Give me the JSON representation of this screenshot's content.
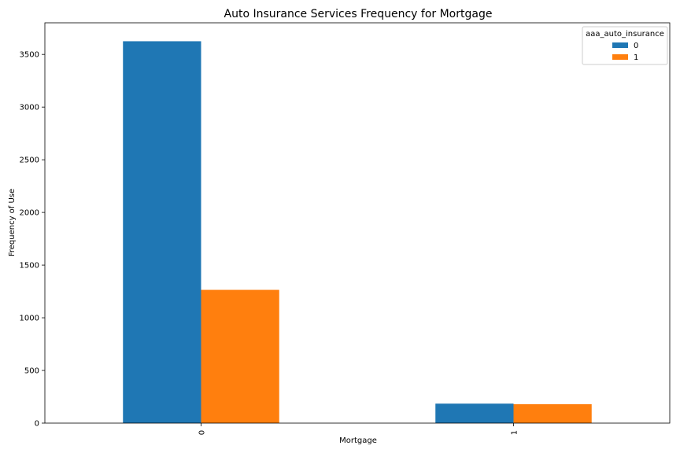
{
  "chart_data": {
    "type": "bar",
    "title": "Auto Insurance Services Frequency for Mortgage",
    "xlabel": "Mortgage",
    "ylabel": "Frequency of Use",
    "categories": [
      "0",
      "1"
    ],
    "series": [
      {
        "name": "0",
        "values": [
          3625,
          185
        ],
        "color": "#1f77b4"
      },
      {
        "name": "1",
        "values": [
          1265,
          180
        ],
        "color": "#ff7f0e"
      }
    ],
    "ylim": [
      0,
      3800
    ],
    "yticks": [
      0,
      500,
      1000,
      1500,
      2000,
      2500,
      3000,
      3500
    ],
    "grid": false,
    "legend": {
      "title": "aaa_auto_insurance",
      "placement": "top-right"
    }
  }
}
